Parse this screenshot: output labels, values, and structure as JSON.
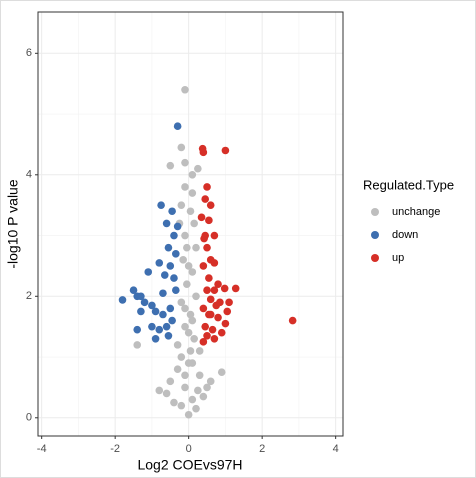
{
  "chart_data": {
    "type": "scatter",
    "x_label": "Log2 COEvs97H",
    "y_label": "-log10 P value",
    "legend_title": "Regulated.Type",
    "legend_position": "right",
    "grid": true,
    "minor_grid": true,
    "xlim": [
      -4.1,
      4.2
    ],
    "ylim": [
      -0.3,
      6.68
    ],
    "xticks": [
      -4,
      -2,
      0,
      2,
      4
    ],
    "yticks": [
      0,
      2,
      4,
      6
    ],
    "series": [
      {
        "name": "unchange",
        "color": "#bebebe",
        "x": [
          -0.1,
          -0.5,
          -0.2,
          -0.1,
          -0.1,
          0.1,
          -0.2,
          0.05,
          0.15,
          -0.1,
          0.2,
          -0.15,
          0.1,
          -0.05,
          0.2,
          -0.2,
          0.05,
          -0.1,
          0.15,
          -0.3,
          0.3,
          -1.4,
          -0.2,
          0.1,
          0.3,
          -0.3,
          -0.5,
          0.5,
          -0.1,
          0.1,
          -0.2,
          0.2,
          0,
          -0.8,
          0.9,
          0.6,
          -0.6,
          0.4,
          -0.4,
          0.25,
          -0.1,
          0.05,
          -0.05,
          0.1,
          0.25,
          -0.25,
          0,
          -0.1,
          0.1,
          0,
          0
        ],
        "values": [
          5.4,
          4.15,
          4.45,
          4.2,
          3.8,
          3.7,
          3.5,
          3.4,
          3.2,
          3.0,
          2.8,
          2.6,
          2.4,
          2.2,
          2.0,
          1.9,
          1.7,
          1.5,
          1.3,
          1.2,
          1.1,
          1.2,
          1.0,
          0.9,
          0.7,
          0.8,
          0.6,
          0.5,
          0.5,
          0.3,
          0.2,
          0.15,
          0.05,
          0.45,
          0.75,
          0.6,
          0.4,
          0.35,
          0.25,
          0.45,
          0.7,
          1.1,
          2.8,
          4.0,
          4.1,
          3.2,
          2.5,
          1.8,
          1.6,
          1.4,
          0.9
        ]
      },
      {
        "name": "down",
        "color": "#3e6fb0",
        "x": [
          -1.8,
          -1.5,
          -1.4,
          -0.3,
          -0.45,
          -0.6,
          -0.4,
          -0.55,
          -0.35,
          -0.8,
          -0.5,
          -0.65,
          -1.1,
          -1.3,
          -1.2,
          -1.0,
          -0.9,
          -0.7,
          -0.5,
          -0.45,
          -0.6,
          -0.8,
          -1.0,
          -1.3,
          -0.9,
          -1.4,
          -0.55,
          -0.35,
          -0.7,
          -0.4,
          -0.3,
          -0.75
        ],
        "values": [
          1.94,
          2.1,
          2.0,
          4.8,
          3.4,
          3.2,
          3.0,
          2.8,
          2.7,
          2.55,
          2.5,
          2.35,
          2.4,
          2.0,
          1.9,
          1.85,
          1.75,
          1.7,
          1.8,
          1.6,
          1.5,
          1.45,
          1.5,
          1.75,
          1.3,
          1.45,
          1.35,
          2.1,
          2.05,
          2.3,
          3.15,
          3.5
        ]
      },
      {
        "name": "up",
        "color": "#d62f27",
        "x": [
          0.38,
          0.4,
          1.0,
          2.83,
          1.28,
          0.98,
          1.1,
          0.45,
          0.6,
          0.55,
          0.7,
          0.45,
          0.5,
          0.6,
          0.7,
          0.4,
          0.55,
          0.8,
          0.5,
          0.6,
          0.75,
          0.4,
          0.55,
          0.8,
          1.0,
          0.45,
          0.65,
          0.9,
          0.5,
          0.7,
          0.4,
          0.6,
          0.85,
          0.35,
          0.5,
          0.42,
          0.7,
          1.05
        ],
        "values": [
          4.43,
          4.37,
          4.4,
          1.6,
          2.13,
          2.13,
          1.9,
          3.6,
          3.5,
          3.25,
          3.0,
          3.0,
          2.8,
          2.6,
          2.55,
          2.5,
          2.3,
          2.2,
          2.1,
          1.95,
          1.85,
          1.8,
          1.7,
          1.65,
          1.55,
          1.5,
          1.45,
          1.4,
          1.35,
          1.3,
          1.25,
          1.7,
          1.9,
          3.3,
          3.8,
          2.95,
          2.1,
          1.75
        ]
      }
    ]
  }
}
